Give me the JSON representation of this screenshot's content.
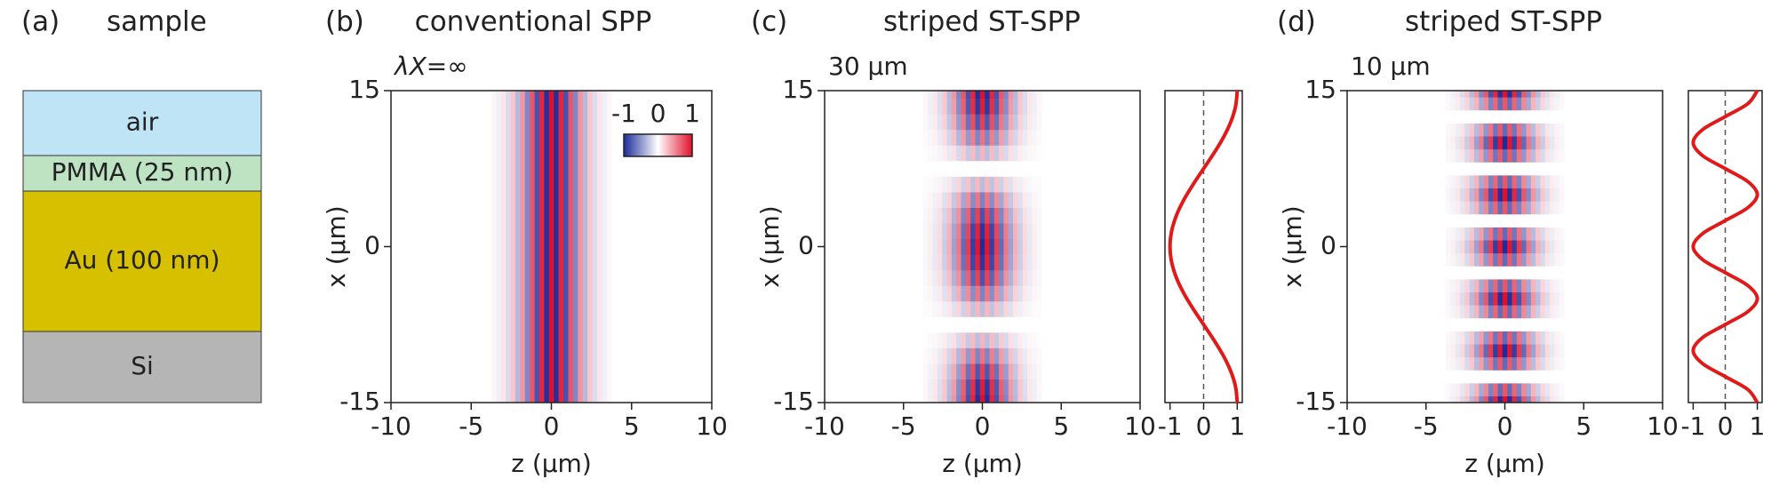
{
  "chart_data": [
    {
      "type": "layers",
      "label": "(a)",
      "title": "sample",
      "layers": [
        {
          "name": "air",
          "color": "#bfe4f6"
        },
        {
          "name": "PMMA (25 nm)",
          "color": "#bde3c3"
        },
        {
          "name": "Au (100 nm)",
          "color": "#d6c000"
        },
        {
          "name": "Si",
          "color": "#b5b5b5"
        }
      ]
    },
    {
      "type": "heatmap",
      "label": "(b)",
      "title": "conventional SPP",
      "annotation": "λX=∞",
      "xlabel": "z (µm)",
      "ylabel": "x (µm)",
      "xlim": [
        -10,
        10
      ],
      "ylim": [
        -15,
        15
      ],
      "xticks": [
        -10,
        -5,
        0,
        5,
        10
      ],
      "yticks": [
        -15,
        0,
        15
      ],
      "z": [
        -3.6,
        -3.3,
        -3.0,
        -2.7,
        -2.4,
        -2.1,
        -1.8,
        -1.5,
        -1.2,
        -0.9,
        -0.6,
        -0.3,
        0,
        0.3,
        0.6,
        0.9,
        1.2,
        1.5,
        1.8,
        2.1,
        2.4,
        2.7,
        3.0,
        3.3,
        3.6
      ],
      "values": [
        0.04,
        -0.07,
        0.11,
        -0.16,
        0.24,
        -0.33,
        0.44,
        -0.57,
        0.7,
        -0.82,
        0.91,
        -0.98,
        1,
        -0.98,
        0.91,
        -0.82,
        0.7,
        -0.57,
        0.44,
        -0.33,
        0.24,
        -0.16,
        0.11,
        -0.07,
        0.04
      ],
      "colorbar": {
        "clim": [
          -1,
          1
        ],
        "ticks": [
          -1,
          0,
          1
        ],
        "colors": [
          "#1c2c9c",
          "#ffffff",
          "#e0102a"
        ]
      }
    },
    {
      "type": "heatmap",
      "label": "(c)",
      "title": "striped ST-SPP",
      "annotation": "30 µm",
      "xlabel": "z (µm)",
      "ylabel": "x (µm)",
      "xlim": [
        -10,
        10
      ],
      "ylim": [
        -15,
        15
      ],
      "xticks": [
        -10,
        -5,
        0,
        5,
        10
      ],
      "yticks": [
        -15,
        0,
        15
      ],
      "z": [
        -3.6,
        -3.3,
        -3.0,
        -2.7,
        -2.4,
        -2.1,
        -1.8,
        -1.5,
        -1.2,
        -0.9,
        -0.6,
        -0.3,
        0,
        0.3,
        0.6,
        0.9,
        1.2,
        1.5,
        1.8,
        2.1,
        2.4,
        2.7,
        3.0,
        3.3,
        3.6
      ],
      "values": [
        0.04,
        -0.07,
        0.11,
        -0.16,
        0.24,
        -0.33,
        0.44,
        -0.57,
        0.7,
        -0.82,
        0.91,
        -0.98,
        1,
        -0.98,
        0.91,
        -0.82,
        0.7,
        -0.57,
        0.44,
        -0.33,
        0.24,
        -0.16,
        0.11,
        -0.07,
        0.04
      ],
      "colorbar": {
        "clim": [
          -1,
          1
        ],
        "colors": [
          "#1c2c9c",
          "#ffffff",
          "#e0102a"
        ]
      },
      "profile": {
        "color": "#e01a1a",
        "xlim": [
          -1.15,
          1.15
        ],
        "xticks": [
          -1,
          0,
          1
        ],
        "x": [
          -15,
          -13.5,
          -12,
          -10.5,
          -9,
          -7.5,
          -6,
          -4.5,
          -3,
          -1.5,
          0,
          1.5,
          3,
          4.5,
          6,
          7.5,
          9,
          10.5,
          12,
          13.5,
          15
        ],
        "values": [
          1,
          0.951,
          0.809,
          0.588,
          0.309,
          0,
          -0.309,
          -0.588,
          -0.809,
          -0.951,
          -1,
          -0.951,
          -0.809,
          -0.588,
          -0.309,
          0,
          0.309,
          0.588,
          0.809,
          0.951,
          1
        ]
      }
    },
    {
      "type": "heatmap",
      "label": "(d)",
      "title": "striped ST-SPP",
      "annotation": "10 µm",
      "xlabel": "z (µm)",
      "ylabel": "x (µm)",
      "xlim": [
        -10,
        10
      ],
      "ylim": [
        -15,
        15
      ],
      "xticks": [
        -10,
        -5,
        0,
        5,
        10
      ],
      "yticks": [
        -15,
        0,
        15
      ],
      "z": [
        -3.6,
        -3.3,
        -3.0,
        -2.7,
        -2.4,
        -2.1,
        -1.8,
        -1.5,
        -1.2,
        -0.9,
        -0.6,
        -0.3,
        0,
        0.3,
        0.6,
        0.9,
        1.2,
        1.5,
        1.8,
        2.1,
        2.4,
        2.7,
        3.0,
        3.3,
        3.6
      ],
      "values": [
        0.04,
        -0.07,
        0.11,
        -0.16,
        0.24,
        -0.33,
        0.44,
        -0.57,
        0.7,
        -0.82,
        0.91,
        -0.98,
        1,
        -0.98,
        0.91,
        -0.82,
        0.7,
        -0.57,
        0.44,
        -0.33,
        0.24,
        -0.16,
        0.11,
        -0.07,
        0.04
      ],
      "colorbar": {
        "clim": [
          -1,
          1
        ],
        "colors": [
          "#1c2c9c",
          "#ffffff",
          "#e0102a"
        ]
      },
      "profile": {
        "color": "#e01a1a",
        "xlim": [
          -1.15,
          1.15
        ],
        "xticks": [
          -1,
          0,
          1
        ],
        "x": [
          -15,
          -13.75,
          -12.5,
          -11.25,
          -10,
          -8.75,
          -7.5,
          -6.25,
          -5,
          -3.75,
          -2.5,
          -1.25,
          0,
          1.25,
          2.5,
          3.75,
          5,
          6.25,
          7.5,
          8.75,
          10,
          11.25,
          12.5,
          13.75,
          15
        ],
        "values": [
          1,
          0.707,
          0,
          -0.707,
          -1,
          -0.707,
          0,
          0.707,
          1,
          0.707,
          0,
          -0.707,
          -1,
          -0.707,
          0,
          0.707,
          1,
          0.707,
          0,
          -0.707,
          -1,
          -0.707,
          0,
          0.707,
          1
        ]
      }
    }
  ]
}
